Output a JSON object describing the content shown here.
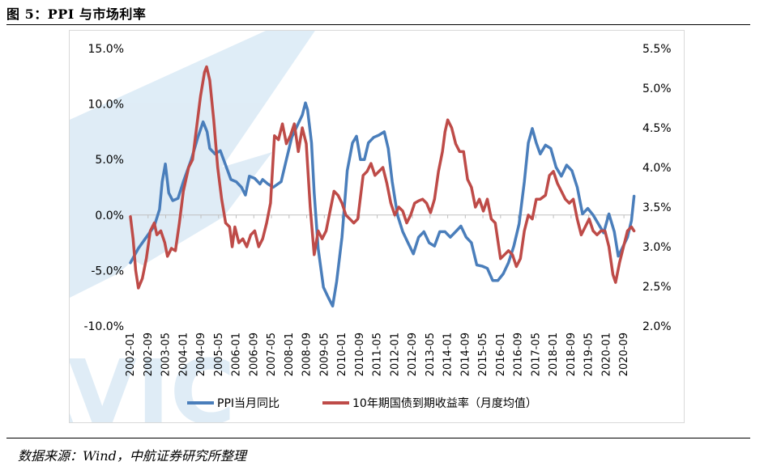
{
  "figure": {
    "title": "图 5：PPI 与市场利率",
    "source": "数据来源：Wind，中航证券研究所整理",
    "watermark_text": "AVIC"
  },
  "colors": {
    "ppi": "#4a7ebb",
    "bond": "#be4b48",
    "watermark": "#dcebf6"
  },
  "chart_data": {
    "type": "line",
    "title": "",
    "x_labels": [
      "2002-01",
      "2002-09",
      "2003-05",
      "2004-01",
      "2004-09",
      "2005-05",
      "2006-01",
      "2006-09",
      "2007-05",
      "2008-01",
      "2008-09",
      "2009-05",
      "2010-01",
      "2010-09",
      "2011-05",
      "2012-01",
      "2012-09",
      "2013-05",
      "2014-01",
      "2014-09",
      "2015-05",
      "2016-01",
      "2016-09",
      "2017-05",
      "2018-01",
      "2018-09",
      "2019-05",
      "2020-01",
      "2020-09"
    ],
    "x_range": [
      2002.0,
      2021.0
    ],
    "y_left": {
      "min": -10,
      "max": 15,
      "step": 5,
      "tick_labels": [
        "-10.0%",
        "-5.0%",
        "0.0%",
        "5.0%",
        "10.0%",
        "15.0%"
      ]
    },
    "y_right": {
      "min": 2.0,
      "max": 5.5,
      "step": 0.5,
      "tick_labels": [
        "2.0%",
        "2.5%",
        "3.0%",
        "3.5%",
        "4.0%",
        "4.5%",
        "5.0%",
        "5.5%"
      ]
    },
    "legend": {
      "position": "bottom"
    },
    "series": [
      {
        "name": "PPI当月同比",
        "axis": "left",
        "points": [
          [
            2002.0,
            -4.3
          ],
          [
            2002.3,
            -3.0
          ],
          [
            2002.6,
            -2.0
          ],
          [
            2002.9,
            -1.0
          ],
          [
            2003.1,
            0.5
          ],
          [
            2003.2,
            3.0
          ],
          [
            2003.32,
            4.6
          ],
          [
            2003.45,
            2.0
          ],
          [
            2003.6,
            1.3
          ],
          [
            2003.8,
            1.5
          ],
          [
            2004.0,
            3.0
          ],
          [
            2004.3,
            5.0
          ],
          [
            2004.55,
            7.0
          ],
          [
            2004.75,
            8.4
          ],
          [
            2004.9,
            7.5
          ],
          [
            2005.0,
            6.0
          ],
          [
            2005.2,
            5.5
          ],
          [
            2005.4,
            5.8
          ],
          [
            2005.6,
            4.5
          ],
          [
            2005.8,
            3.2
          ],
          [
            2006.0,
            3.0
          ],
          [
            2006.2,
            2.5
          ],
          [
            2006.35,
            1.8
          ],
          [
            2006.5,
            3.5
          ],
          [
            2006.7,
            3.3
          ],
          [
            2006.9,
            2.8
          ],
          [
            2007.0,
            3.2
          ],
          [
            2007.2,
            2.8
          ],
          [
            2007.4,
            2.5
          ],
          [
            2007.7,
            3.0
          ],
          [
            2007.9,
            5.0
          ],
          [
            2008.1,
            7.0
          ],
          [
            2008.3,
            8.0
          ],
          [
            2008.5,
            9.0
          ],
          [
            2008.62,
            10.1
          ],
          [
            2008.7,
            9.5
          ],
          [
            2008.85,
            6.5
          ],
          [
            2008.95,
            2.0
          ],
          [
            2009.1,
            -3.0
          ],
          [
            2009.3,
            -6.5
          ],
          [
            2009.5,
            -7.5
          ],
          [
            2009.65,
            -8.2
          ],
          [
            2009.8,
            -6.0
          ],
          [
            2010.0,
            -2.0
          ],
          [
            2010.2,
            4.0
          ],
          [
            2010.4,
            6.5
          ],
          [
            2010.55,
            7.1
          ],
          [
            2010.7,
            5.0
          ],
          [
            2010.85,
            5.0
          ],
          [
            2011.0,
            6.5
          ],
          [
            2011.2,
            7.0
          ],
          [
            2011.4,
            7.2
          ],
          [
            2011.6,
            7.5
          ],
          [
            2011.75,
            6.0
          ],
          [
            2011.9,
            3.0
          ],
          [
            2012.1,
            0.0
          ],
          [
            2012.3,
            -1.5
          ],
          [
            2012.5,
            -2.5
          ],
          [
            2012.7,
            -3.5
          ],
          [
            2012.9,
            -2.0
          ],
          [
            2013.1,
            -1.5
          ],
          [
            2013.3,
            -2.5
          ],
          [
            2013.5,
            -2.8
          ],
          [
            2013.7,
            -1.5
          ],
          [
            2013.9,
            -1.5
          ],
          [
            2014.1,
            -2.0
          ],
          [
            2014.3,
            -1.5
          ],
          [
            2014.5,
            -1.0
          ],
          [
            2014.7,
            -2.0
          ],
          [
            2014.9,
            -2.5
          ],
          [
            2015.1,
            -4.5
          ],
          [
            2015.3,
            -4.6
          ],
          [
            2015.5,
            -4.8
          ],
          [
            2015.7,
            -5.9
          ],
          [
            2015.9,
            -5.9
          ],
          [
            2016.1,
            -5.3
          ],
          [
            2016.3,
            -4.3
          ],
          [
            2016.5,
            -2.8
          ],
          [
            2016.7,
            -0.8
          ],
          [
            2016.9,
            3.0
          ],
          [
            2017.05,
            6.5
          ],
          [
            2017.2,
            7.8
          ],
          [
            2017.35,
            6.5
          ],
          [
            2017.5,
            5.5
          ],
          [
            2017.7,
            6.3
          ],
          [
            2017.9,
            6.0
          ],
          [
            2018.1,
            4.3
          ],
          [
            2018.3,
            3.5
          ],
          [
            2018.5,
            4.5
          ],
          [
            2018.7,
            4.0
          ],
          [
            2018.9,
            2.5
          ],
          [
            2019.1,
            0.1
          ],
          [
            2019.3,
            0.6
          ],
          [
            2019.5,
            0.0
          ],
          [
            2019.7,
            -0.8
          ],
          [
            2019.9,
            -1.6
          ],
          [
            2020.1,
            0.1
          ],
          [
            2020.3,
            -1.5
          ],
          [
            2020.45,
            -3.7
          ],
          [
            2020.6,
            -3.0
          ],
          [
            2020.8,
            -2.0
          ],
          [
            2020.95,
            -0.5
          ],
          [
            2021.05,
            1.7
          ]
        ]
      },
      {
        "name": "10年期国债到期收益率（月度均值）",
        "axis": "right",
        "points": [
          [
            2002.0,
            3.38
          ],
          [
            2002.1,
            3.1
          ],
          [
            2002.2,
            2.7
          ],
          [
            2002.3,
            2.48
          ],
          [
            2002.45,
            2.6
          ],
          [
            2002.6,
            2.85
          ],
          [
            2002.75,
            3.2
          ],
          [
            2002.9,
            3.3
          ],
          [
            2003.0,
            3.15
          ],
          [
            2003.15,
            3.2
          ],
          [
            2003.3,
            3.05
          ],
          [
            2003.4,
            2.88
          ],
          [
            2003.55,
            2.98
          ],
          [
            2003.7,
            2.95
          ],
          [
            2003.85,
            3.3
          ],
          [
            2004.0,
            3.7
          ],
          [
            2004.2,
            4.0
          ],
          [
            2004.35,
            4.1
          ],
          [
            2004.5,
            4.5
          ],
          [
            2004.65,
            4.9
          ],
          [
            2004.8,
            5.2
          ],
          [
            2004.88,
            5.27
          ],
          [
            2005.0,
            5.1
          ],
          [
            2005.15,
            4.6
          ],
          [
            2005.3,
            4.0
          ],
          [
            2005.45,
            3.6
          ],
          [
            2005.6,
            3.3
          ],
          [
            2005.75,
            3.25
          ],
          [
            2005.85,
            3.0
          ],
          [
            2005.95,
            3.25
          ],
          [
            2006.1,
            3.05
          ],
          [
            2006.25,
            3.1
          ],
          [
            2006.4,
            3.0
          ],
          [
            2006.55,
            3.15
          ],
          [
            2006.7,
            3.2
          ],
          [
            2006.85,
            3.0
          ],
          [
            2007.0,
            3.1
          ],
          [
            2007.15,
            3.3
          ],
          [
            2007.3,
            3.55
          ],
          [
            2007.45,
            4.4
          ],
          [
            2007.6,
            4.35
          ],
          [
            2007.75,
            4.55
          ],
          [
            2007.9,
            4.3
          ],
          [
            2008.05,
            4.4
          ],
          [
            2008.2,
            4.55
          ],
          [
            2008.35,
            4.2
          ],
          [
            2008.5,
            4.5
          ],
          [
            2008.65,
            4.3
          ],
          [
            2008.8,
            3.5
          ],
          [
            2008.95,
            2.9
          ],
          [
            2009.1,
            3.2
          ],
          [
            2009.25,
            3.1
          ],
          [
            2009.4,
            3.2
          ],
          [
            2009.55,
            3.45
          ],
          [
            2009.7,
            3.7
          ],
          [
            2009.85,
            3.65
          ],
          [
            2010.0,
            3.55
          ],
          [
            2010.15,
            3.4
          ],
          [
            2010.3,
            3.35
          ],
          [
            2010.45,
            3.3
          ],
          [
            2010.6,
            3.35
          ],
          [
            2010.8,
            3.9
          ],
          [
            2010.95,
            3.95
          ],
          [
            2011.1,
            4.05
          ],
          [
            2011.25,
            3.9
          ],
          [
            2011.4,
            3.95
          ],
          [
            2011.55,
            4.0
          ],
          [
            2011.7,
            3.8
          ],
          [
            2011.85,
            3.55
          ],
          [
            2012.0,
            3.4
          ],
          [
            2012.15,
            3.5
          ],
          [
            2012.3,
            3.45
          ],
          [
            2012.45,
            3.3
          ],
          [
            2012.6,
            3.4
          ],
          [
            2012.75,
            3.55
          ],
          [
            2012.9,
            3.58
          ],
          [
            2013.05,
            3.6
          ],
          [
            2013.2,
            3.55
          ],
          [
            2013.35,
            3.43
          ],
          [
            2013.5,
            3.6
          ],
          [
            2013.65,
            3.95
          ],
          [
            2013.8,
            4.2
          ],
          [
            2013.9,
            4.45
          ],
          [
            2014.0,
            4.6
          ],
          [
            2014.15,
            4.5
          ],
          [
            2014.3,
            4.3
          ],
          [
            2014.45,
            4.2
          ],
          [
            2014.6,
            4.2
          ],
          [
            2014.75,
            3.85
          ],
          [
            2014.9,
            3.75
          ],
          [
            2015.05,
            3.5
          ],
          [
            2015.2,
            3.6
          ],
          [
            2015.35,
            3.45
          ],
          [
            2015.5,
            3.6
          ],
          [
            2015.65,
            3.35
          ],
          [
            2015.8,
            3.3
          ],
          [
            2016.0,
            2.85
          ],
          [
            2016.15,
            2.9
          ],
          [
            2016.3,
            2.95
          ],
          [
            2016.45,
            2.9
          ],
          [
            2016.6,
            2.75
          ],
          [
            2016.75,
            2.85
          ],
          [
            2016.9,
            3.2
          ],
          [
            2017.05,
            3.4
          ],
          [
            2017.2,
            3.35
          ],
          [
            2017.35,
            3.6
          ],
          [
            2017.5,
            3.6
          ],
          [
            2017.7,
            3.65
          ],
          [
            2017.85,
            3.9
          ],
          [
            2018.0,
            3.95
          ],
          [
            2018.15,
            3.8
          ],
          [
            2018.3,
            3.7
          ],
          [
            2018.45,
            3.6
          ],
          [
            2018.6,
            3.55
          ],
          [
            2018.75,
            3.6
          ],
          [
            2018.9,
            3.35
          ],
          [
            2019.05,
            3.15
          ],
          [
            2019.2,
            3.25
          ],
          [
            2019.35,
            3.35
          ],
          [
            2019.5,
            3.2
          ],
          [
            2019.65,
            3.15
          ],
          [
            2019.8,
            3.2
          ],
          [
            2019.95,
            3.2
          ],
          [
            2020.1,
            3.0
          ],
          [
            2020.25,
            2.65
          ],
          [
            2020.35,
            2.55
          ],
          [
            2020.5,
            2.8
          ],
          [
            2020.65,
            3.0
          ],
          [
            2020.8,
            3.2
          ],
          [
            2020.95,
            3.25
          ],
          [
            2021.05,
            3.2
          ]
        ]
      }
    ]
  }
}
